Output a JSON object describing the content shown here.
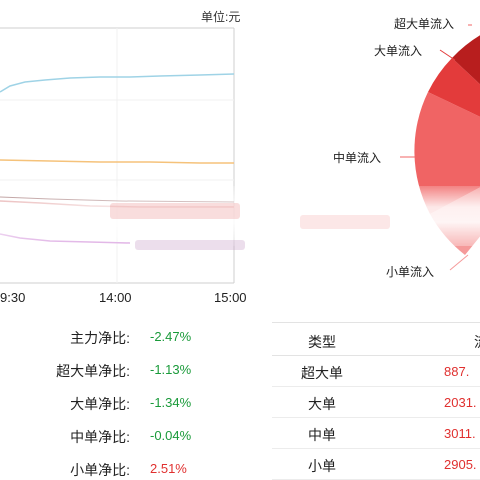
{
  "line_chart": {
    "unit_label": "单位:元",
    "x_ticks": [
      "9:30",
      "14:00",
      "15:00"
    ],
    "series": [
      {
        "color": "#9fd3e6",
        "shape": "rising-then-flat"
      },
      {
        "color": "#f5c27a",
        "shape": "flat"
      },
      {
        "color": "#c94c4c",
        "shape": "flat-low"
      },
      {
        "color": "#d08ad8",
        "shape": "falling"
      }
    ]
  },
  "pie_chart": {
    "labels": [
      "超大单流入",
      "大单流入",
      "中单流入",
      "小单流入"
    ],
    "colors": [
      "#b81e1e",
      "#e33b3b",
      "#f06464",
      "#f59a9a"
    ]
  },
  "ratios": [
    {
      "name": "主力净比:",
      "value": "-2.47%",
      "sign": "neg"
    },
    {
      "name": "超大单净比:",
      "value": "-1.13%",
      "sign": "neg"
    },
    {
      "name": "大单净比:",
      "value": "-1.34%",
      "sign": "neg"
    },
    {
      "name": "中单净比:",
      "value": "-0.04%",
      "sign": "neg"
    },
    {
      "name": "小单净比:",
      "value": "2.51%",
      "sign": "pos"
    }
  ],
  "flow_table": {
    "headers": {
      "type": "类型",
      "amount": "流"
    },
    "rows": [
      {
        "type": "超大单",
        "amount": "887."
      },
      {
        "type": "大单",
        "amount": "2031."
      },
      {
        "type": "中单",
        "amount": "3011."
      },
      {
        "type": "小单",
        "amount": "2905."
      }
    ]
  },
  "colors": {
    "positive": "#e0302f",
    "negative": "#1a9a3a"
  }
}
